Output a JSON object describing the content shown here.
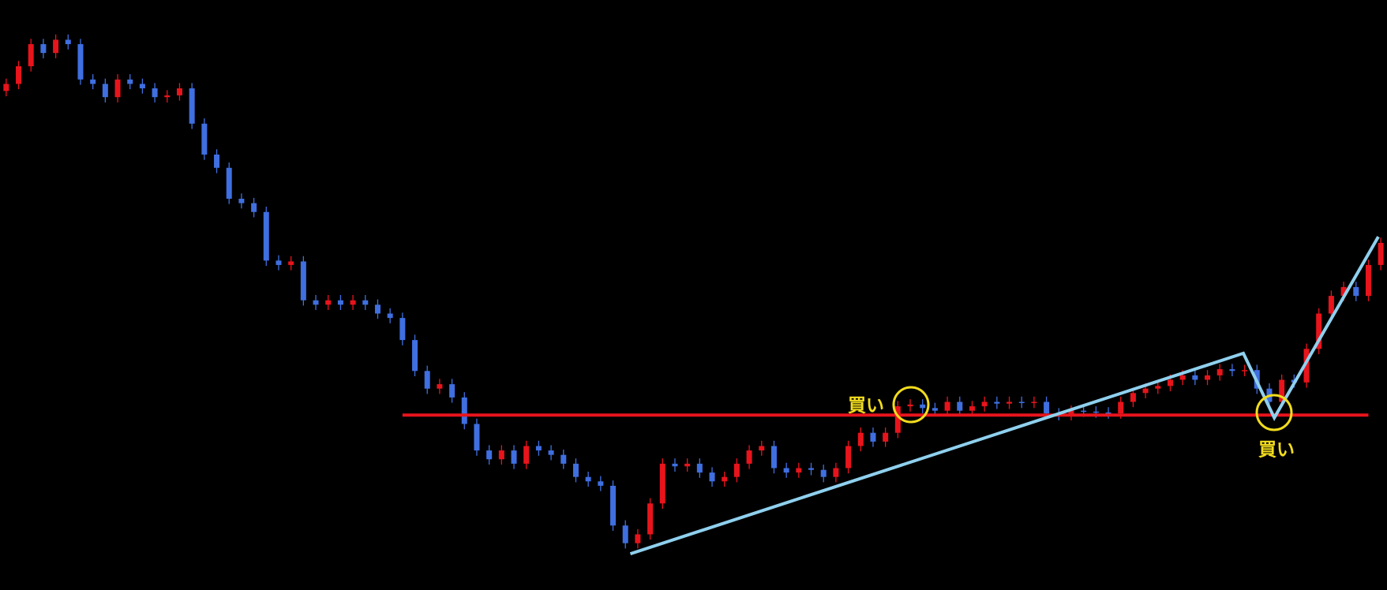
{
  "chart_data": {
    "type": "candlestick",
    "xlim": [
      -0.5,
      111.5
    ],
    "ylim": [
      0,
      668
    ],
    "up_color": "#e8141c",
    "down_color": "#3f6fe0",
    "open": [
      565,
      573,
      593,
      618,
      608,
      623,
      618,
      578,
      573,
      558,
      578,
      573,
      568,
      558,
      560,
      568,
      528,
      493,
      478,
      443,
      438,
      428,
      373,
      368,
      372,
      328,
      323,
      328,
      323,
      328,
      323,
      313,
      308,
      283,
      248,
      228,
      233,
      218,
      188,
      158,
      148,
      158,
      143,
      163,
      158,
      153,
      143,
      128,
      123,
      118,
      73,
      53,
      63,
      98,
      143,
      140,
      143,
      133,
      123,
      128,
      143,
      158,
      163,
      138,
      133,
      138,
      136,
      128,
      138,
      163,
      178,
      168,
      178,
      208,
      210,
      206,
      203,
      213,
      203,
      208,
      213,
      211,
      213,
      212,
      213,
      200,
      198,
      203,
      202,
      201,
      200,
      213,
      223,
      228,
      231,
      238,
      243,
      238,
      243,
      250,
      248,
      249,
      228,
      213,
      238,
      235,
      273,
      313,
      333,
      343,
      333,
      368
    ],
    "high": [
      579,
      599,
      624,
      624,
      629,
      629,
      624,
      584,
      579,
      584,
      584,
      579,
      574,
      566,
      574,
      574,
      534,
      499,
      484,
      449,
      444,
      434,
      379,
      378,
      378,
      334,
      334,
      334,
      334,
      334,
      329,
      319,
      314,
      289,
      254,
      239,
      239,
      224,
      194,
      164,
      164,
      164,
      169,
      169,
      164,
      159,
      149,
      134,
      129,
      124,
      79,
      69,
      104,
      149,
      149,
      149,
      149,
      139,
      134,
      149,
      164,
      169,
      169,
      144,
      144,
      144,
      142,
      144,
      169,
      184,
      184,
      184,
      214,
      216,
      216,
      212,
      219,
      219,
      214,
      219,
      219,
      219,
      219,
      219,
      219,
      206,
      209,
      209,
      208,
      207,
      219,
      229,
      234,
      237,
      244,
      249,
      249,
      249,
      256,
      256,
      255,
      255,
      234,
      244,
      244,
      279,
      319,
      339,
      349,
      349,
      374,
      399
    ],
    "low": [
      559,
      567,
      587,
      602,
      602,
      612,
      572,
      567,
      552,
      552,
      567,
      562,
      552,
      552,
      554,
      522,
      487,
      472,
      437,
      432,
      422,
      367,
      362,
      362,
      322,
      317,
      317,
      317,
      317,
      317,
      307,
      302,
      277,
      242,
      222,
      222,
      212,
      182,
      152,
      142,
      142,
      137,
      137,
      152,
      147,
      137,
      122,
      117,
      112,
      67,
      47,
      47,
      57,
      92,
      134,
      134,
      127,
      117,
      117,
      122,
      137,
      152,
      132,
      127,
      127,
      130,
      122,
      122,
      132,
      157,
      162,
      162,
      172,
      202,
      200,
      197,
      197,
      197,
      197,
      202,
      205,
      205,
      206,
      206,
      194,
      192,
      192,
      196,
      195,
      194,
      194,
      207,
      217,
      222,
      225,
      232,
      232,
      232,
      237,
      242,
      242,
      222,
      207,
      207,
      229,
      229,
      267,
      307,
      327,
      327,
      327,
      362
    ],
    "close": [
      573,
      593,
      618,
      608,
      623,
      618,
      578,
      573,
      558,
      578,
      573,
      568,
      558,
      560,
      568,
      528,
      493,
      478,
      443,
      438,
      428,
      373,
      368,
      372,
      328,
      323,
      328,
      323,
      328,
      323,
      313,
      308,
      283,
      248,
      228,
      233,
      218,
      188,
      158,
      148,
      158,
      143,
      163,
      158,
      153,
      143,
      128,
      123,
      118,
      73,
      53,
      63,
      98,
      143,
      140,
      143,
      133,
      123,
      128,
      143,
      158,
      163,
      138,
      133,
      138,
      136,
      128,
      138,
      163,
      178,
      168,
      178,
      208,
      210,
      206,
      203,
      213,
      203,
      208,
      213,
      211,
      213,
      212,
      213,
      200,
      198,
      203,
      202,
      201,
      200,
      213,
      223,
      228,
      231,
      238,
      243,
      238,
      243,
      250,
      248,
      249,
      228,
      213,
      238,
      235,
      273,
      313,
      333,
      343,
      333,
      368,
      393
    ],
    "lines": [
      {
        "color": "#e8141c",
        "x": [
          32,
          110
        ],
        "y": [
          198,
          198
        ]
      },
      {
        "color": "#8fd0ee",
        "x": [
          50.4,
          99.9,
          102.4,
          110.8
        ],
        "y": [
          41,
          268,
          195,
          400
        ]
      }
    ],
    "annotations": [
      "買い",
      "買い"
    ]
  }
}
